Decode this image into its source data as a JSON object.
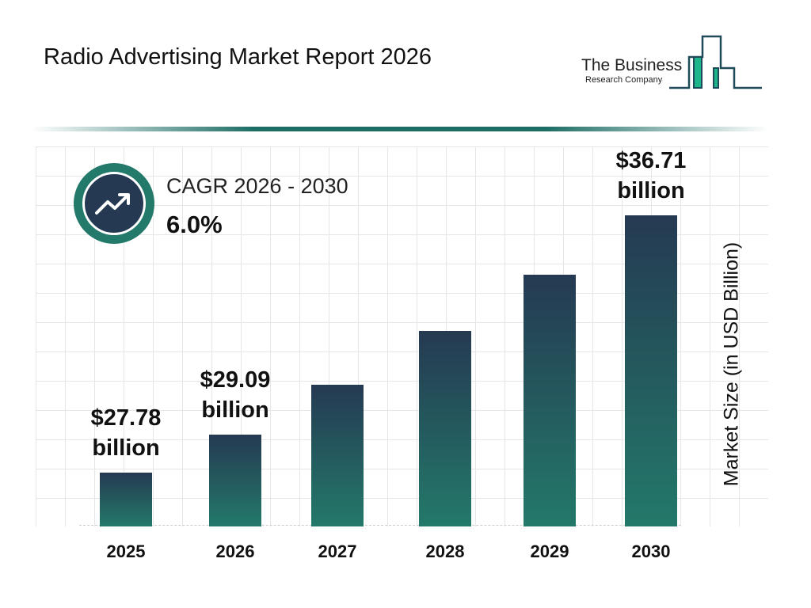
{
  "header": {
    "title": "Radio Advertising Market Report 2026"
  },
  "logo": {
    "line1": "The Business",
    "line2": "Research Company"
  },
  "cagr": {
    "label": "CAGR 2026 - 2030",
    "value": "6.0%",
    "icon": "trending-up-icon"
  },
  "colors": {
    "bar_top": "#253a52",
    "bar_bottom": "#23796a",
    "accent": "#1f6e66"
  },
  "chart_data": {
    "type": "bar",
    "title": "Radio Advertising Market Report 2026",
    "ylabel": "Market Size (in USD Billion)",
    "xlabel": "",
    "categories": [
      "2025",
      "2026",
      "2027",
      "2028",
      "2029",
      "2030"
    ],
    "values": [
      27.78,
      29.09,
      30.84,
      32.69,
      34.65,
      36.71
    ],
    "data_labels": [
      {
        "index": 0,
        "line1": "$27.78",
        "line2": "billion"
      },
      {
        "index": 1,
        "line1": "$29.09",
        "line2": "billion"
      },
      {
        "index": 5,
        "line1": "$36.71",
        "line2": "billion"
      }
    ],
    "grid": true
  }
}
